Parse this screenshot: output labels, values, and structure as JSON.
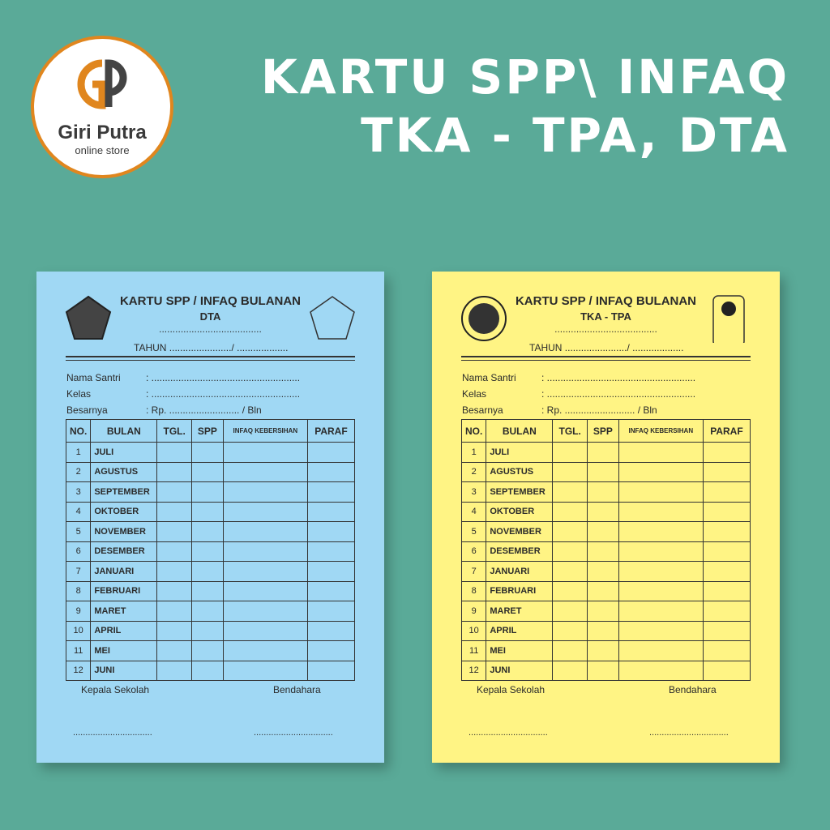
{
  "logo": {
    "name": "Giri Putra",
    "sub": "online store"
  },
  "title": {
    "line1": "KARTU SPP\\ INFAQ",
    "line2": "TKA - TPA, DTA"
  },
  "colors": {
    "background": "#5aaa98",
    "blue_card": "#a0d8f4",
    "yellow_card": "#fff484",
    "accent": "#e0861e"
  },
  "cards": [
    {
      "bg": "#a0d8f4",
      "heading": "KARTU SPP / INFAQ BULANAN",
      "sub": "DTA"
    },
    {
      "bg": "#fff484",
      "heading": "KARTU SPP / INFAQ BULANAN",
      "sub": "TKA - TPA"
    }
  ],
  "form": {
    "dots": "......................................",
    "tahun": "TAHUN ......................./ ...................",
    "fields": [
      {
        "label": "Nama Santri",
        "value": ": ......................................................."
      },
      {
        "label": "Kelas",
        "value": ": ......................................................."
      },
      {
        "label": "Besarnya",
        "value": ": Rp. .......................... / Bln"
      }
    ],
    "columns": [
      "NO.",
      "BULAN",
      "TGL.",
      "SPP",
      "INFAQ KEBERSIHAN",
      "PARAF"
    ],
    "months": [
      "JULI",
      "AGUSTUS",
      "SEPTEMBER",
      "OKTOBER",
      "NOVEMBER",
      "DESEMBER",
      "JANUARI",
      "FEBRUARI",
      "MARET",
      "APRIL",
      "MEI",
      "JUNI"
    ],
    "sign_left": "Kepala Sekolah",
    "sign_right": "Bendahara",
    "sign_dots": "................................"
  }
}
